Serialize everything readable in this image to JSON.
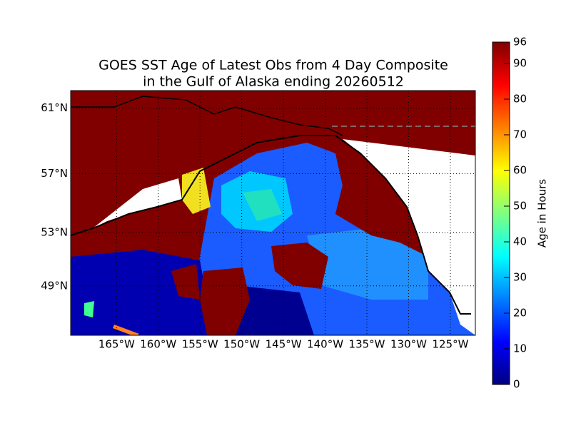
{
  "title": [
    "GOES SST Age of Latest Obs from 4 Day Composite",
    "in the Gulf of Alaska ending 20260512"
  ],
  "map": {
    "lonlim": [
      -170.5,
      -122
    ],
    "latlim": [
      45,
      62
    ],
    "lat_ticks": [
      {
        "value": 49,
        "label": "49°N"
      },
      {
        "value": 53,
        "label": "53°N"
      },
      {
        "value": 57,
        "label": "57°N"
      },
      {
        "value": 61,
        "label": "61°N"
      }
    ],
    "lon_ticks": [
      {
        "value": -165,
        "label": "165°W"
      },
      {
        "value": -160,
        "label": "160°W"
      },
      {
        "value": -155,
        "label": "155°W"
      },
      {
        "value": -150,
        "label": "150°W"
      },
      {
        "value": -145,
        "label": "145°W"
      },
      {
        "value": -140,
        "label": "140°W"
      },
      {
        "value": -135,
        "label": "135°W"
      },
      {
        "value": -130,
        "label": "130°W"
      },
      {
        "value": -125,
        "label": "125°W"
      }
    ]
  },
  "colorbar": {
    "label": "Age in Hours",
    "range": [
      0,
      96
    ],
    "ticks": [
      0,
      10,
      20,
      30,
      40,
      50,
      60,
      70,
      80,
      90,
      96
    ]
  }
}
